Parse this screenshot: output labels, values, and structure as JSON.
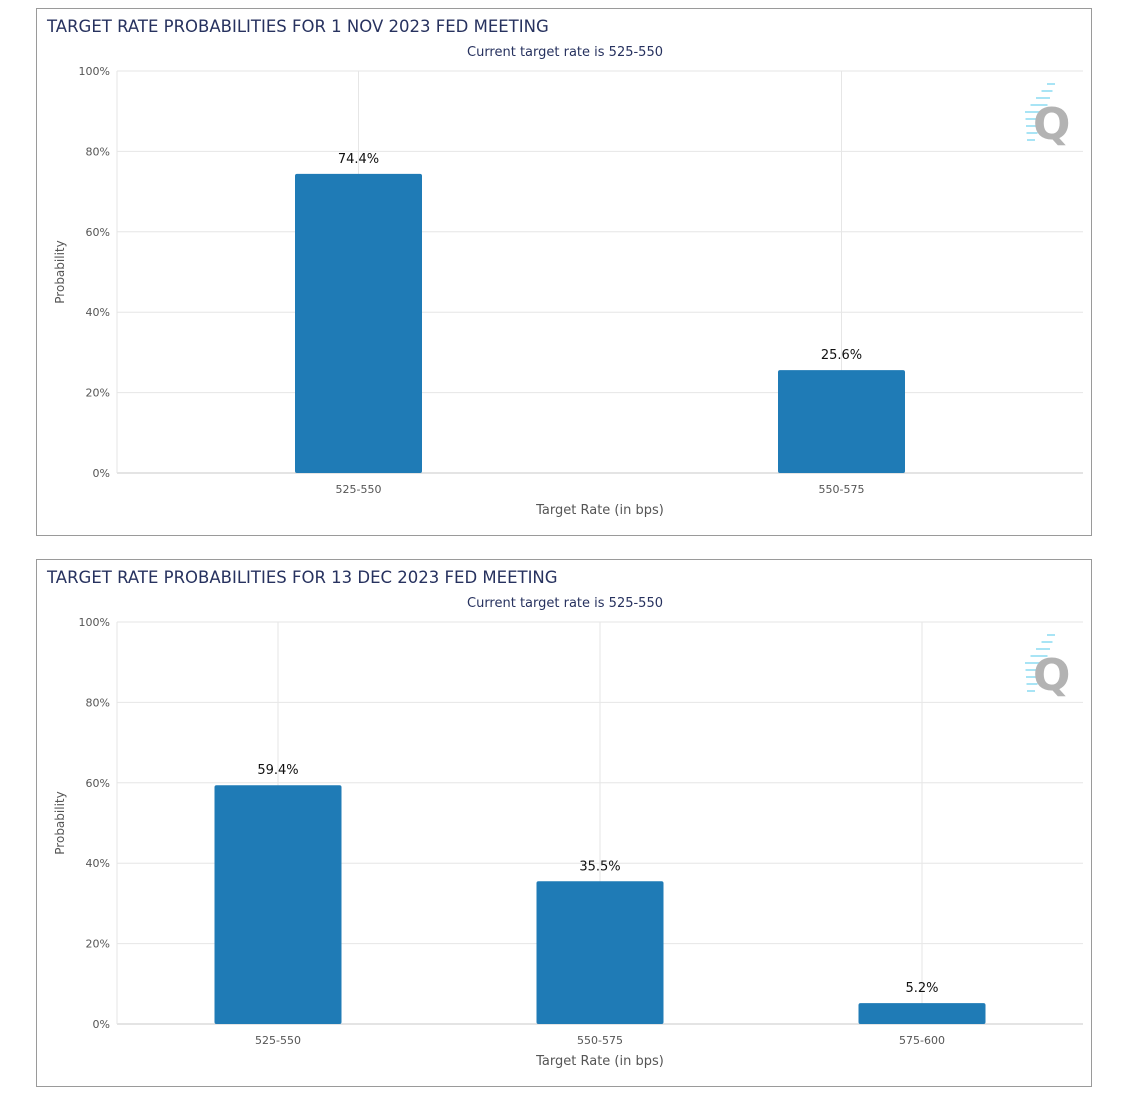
{
  "chart_data": [
    {
      "type": "bar",
      "title": "TARGET RATE PROBABILITIES FOR 1 NOV 2023 FED MEETING",
      "subtitle": "Current target rate is 525-550",
      "xlabel": "Target Rate (in bps)",
      "ylabel": "Probability",
      "categories": [
        "525-550",
        "550-575"
      ],
      "values": [
        74.4,
        25.6
      ],
      "data_labels": [
        "74.4%",
        "25.6%"
      ],
      "ylim": [
        0,
        100
      ],
      "yticks": [
        "0%",
        "20%",
        "40%",
        "60%",
        "80%",
        "100%"
      ],
      "grid": true
    },
    {
      "type": "bar",
      "title": "TARGET RATE PROBABILITIES FOR 13 DEC 2023 FED MEETING",
      "subtitle": "Current target rate is 525-550",
      "xlabel": "Target Rate (in bps)",
      "ylabel": "Probability",
      "categories": [
        "525-550",
        "550-575",
        "575-600"
      ],
      "values": [
        59.4,
        35.5,
        5.2
      ],
      "data_labels": [
        "59.4%",
        "35.5%",
        "5.2%"
      ],
      "ylim": [
        0,
        100
      ],
      "yticks": [
        "0%",
        "20%",
        "40%",
        "60%",
        "80%",
        "100%"
      ],
      "grid": true
    }
  ],
  "colors": {
    "bar": "#1f7bb6",
    "title": "#27325f",
    "watermark": "#b3b3b3"
  },
  "watermark_icon": "cme-q-logo"
}
